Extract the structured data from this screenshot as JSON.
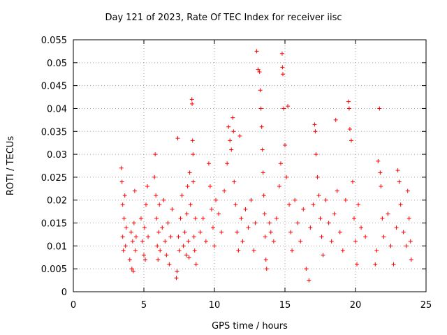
{
  "chart_data": {
    "type": "scatter",
    "title": "Day 121 of 2023, Rate Of TEC Index for receiver iisc",
    "xlabel": "GPS time / hours",
    "ylabel": "ROTI / TECUs",
    "xlim": [
      0,
      25
    ],
    "ylim": [
      0,
      0.055
    ],
    "xticks": [
      "0",
      "5",
      "10",
      "15",
      "20",
      "25"
    ],
    "yticks": [
      "0",
      "0.005",
      "0.01",
      "0.015",
      "0.02",
      "0.025",
      "0.03",
      "0.035",
      "0.04",
      "0.045",
      "0.05",
      "0.055"
    ],
    "grid": true,
    "marker": "+",
    "marker_color": "#ff0000",
    "series": [
      {
        "name": "ROTI",
        "points": [
          [
            3.4,
            0.027
          ],
          [
            3.45,
            0.024
          ],
          [
            3.5,
            0.019
          ],
          [
            3.5,
            0.012
          ],
          [
            3.55,
            0.009
          ],
          [
            3.6,
            0.016
          ],
          [
            3.65,
            0.021
          ],
          [
            3.7,
            0.01
          ],
          [
            3.75,
            0.014
          ],
          [
            4.0,
            0.007
          ],
          [
            4.1,
            0.013
          ],
          [
            4.15,
            0.005
          ],
          [
            4.2,
            0.011
          ],
          [
            4.25,
            0.0045
          ],
          [
            4.3,
            0.015
          ],
          [
            4.35,
            0.022
          ],
          [
            4.4,
            0.009
          ],
          [
            4.45,
            0.012
          ],
          [
            4.8,
            0.016
          ],
          [
            4.9,
            0.011
          ],
          [
            5.0,
            0.008
          ],
          [
            5.05,
            0.014
          ],
          [
            5.1,
            0.007
          ],
          [
            5.15,
            0.019
          ],
          [
            5.25,
            0.023
          ],
          [
            5.3,
            0.012
          ],
          [
            5.75,
            0.025
          ],
          [
            5.8,
            0.03
          ],
          [
            5.85,
            0.021
          ],
          [
            5.9,
            0.016
          ],
          [
            5.95,
            0.01
          ],
          [
            6.0,
            0.007
          ],
          [
            6.05,
            0.013
          ],
          [
            6.1,
            0.019
          ],
          [
            6.15,
            0.009
          ],
          [
            6.3,
            0.014
          ],
          [
            6.4,
            0.02
          ],
          [
            6.5,
            0.011
          ],
          [
            6.6,
            0.008
          ],
          [
            6.7,
            0.015
          ],
          [
            6.8,
            0.006
          ],
          [
            6.9,
            0.012
          ],
          [
            7.0,
            0.018
          ],
          [
            7.3,
            0.003
          ],
          [
            7.35,
            0.0045
          ],
          [
            7.4,
            0.0335
          ],
          [
            7.45,
            0.012
          ],
          [
            7.5,
            0.009
          ],
          [
            7.6,
            0.016
          ],
          [
            7.7,
            0.021
          ],
          [
            7.8,
            0.01
          ],
          [
            7.9,
            0.013
          ],
          [
            8.0,
            0.008
          ],
          [
            8.05,
            0.017
          ],
          [
            8.1,
            0.023
          ],
          [
            8.15,
            0.011
          ],
          [
            8.2,
            0.0075
          ],
          [
            8.25,
            0.026
          ],
          [
            8.3,
            0.019
          ],
          [
            8.4,
            0.042
          ],
          [
            8.42,
            0.041
          ],
          [
            8.45,
            0.033
          ],
          [
            8.48,
            0.03
          ],
          [
            8.5,
            0.024
          ],
          [
            8.55,
            0.012
          ],
          [
            8.6,
            0.009
          ],
          [
            8.65,
            0.016
          ],
          [
            8.7,
            0.006
          ],
          [
            9.0,
            0.013
          ],
          [
            9.2,
            0.016
          ],
          [
            9.4,
            0.011
          ],
          [
            9.6,
            0.028
          ],
          [
            9.7,
            0.023
          ],
          [
            9.8,
            0.018
          ],
          [
            9.9,
            0.014
          ],
          [
            10.0,
            0.01
          ],
          [
            10.1,
            0.02
          ],
          [
            10.3,
            0.017
          ],
          [
            10.5,
            0.013
          ],
          [
            10.7,
            0.022
          ],
          [
            10.9,
            0.028
          ],
          [
            11.0,
            0.036
          ],
          [
            11.1,
            0.033
          ],
          [
            11.2,
            0.031
          ],
          [
            11.3,
            0.038
          ],
          [
            11.35,
            0.035
          ],
          [
            11.4,
            0.024
          ],
          [
            11.5,
            0.019
          ],
          [
            11.6,
            0.013
          ],
          [
            11.7,
            0.009
          ],
          [
            11.8,
            0.034
          ],
          [
            11.9,
            0.016
          ],
          [
            12.0,
            0.011
          ],
          [
            12.2,
            0.018
          ],
          [
            12.4,
            0.014
          ],
          [
            12.6,
            0.02
          ],
          [
            12.8,
            0.009
          ],
          [
            12.9,
            0.015
          ],
          [
            13.0,
            0.0525
          ],
          [
            13.1,
            0.0485
          ],
          [
            13.2,
            0.048
          ],
          [
            13.25,
            0.044
          ],
          [
            13.3,
            0.04
          ],
          [
            13.35,
            0.036
          ],
          [
            13.4,
            0.031
          ],
          [
            13.45,
            0.026
          ],
          [
            13.5,
            0.021
          ],
          [
            13.55,
            0.017
          ],
          [
            13.6,
            0.012
          ],
          [
            13.65,
            0.007
          ],
          [
            13.7,
            0.005
          ],
          [
            13.9,
            0.015
          ],
          [
            14.0,
            0.013
          ],
          [
            14.2,
            0.011
          ],
          [
            14.4,
            0.016
          ],
          [
            14.6,
            0.023
          ],
          [
            14.7,
            0.028
          ],
          [
            14.8,
            0.052
          ],
          [
            14.82,
            0.049
          ],
          [
            14.85,
            0.0475
          ],
          [
            14.9,
            0.04
          ],
          [
            15.0,
            0.032
          ],
          [
            15.1,
            0.025
          ],
          [
            15.2,
            0.0405
          ],
          [
            15.3,
            0.019
          ],
          [
            15.4,
            0.013
          ],
          [
            15.5,
            0.009
          ],
          [
            15.7,
            0.02
          ],
          [
            15.9,
            0.015
          ],
          [
            16.1,
            0.011
          ],
          [
            16.3,
            0.018
          ],
          [
            16.5,
            0.005
          ],
          [
            16.7,
            0.0025
          ],
          [
            16.8,
            0.014
          ],
          [
            17.0,
            0.019
          ],
          [
            17.1,
            0.0365
          ],
          [
            17.15,
            0.035
          ],
          [
            17.2,
            0.03
          ],
          [
            17.3,
            0.025
          ],
          [
            17.4,
            0.021
          ],
          [
            17.5,
            0.016
          ],
          [
            17.6,
            0.012
          ],
          [
            17.7,
            0.008
          ],
          [
            17.9,
            0.02
          ],
          [
            18.1,
            0.015
          ],
          [
            18.3,
            0.011
          ],
          [
            18.5,
            0.017
          ],
          [
            18.6,
            0.0375
          ],
          [
            18.7,
            0.022
          ],
          [
            18.9,
            0.013
          ],
          [
            19.1,
            0.009
          ],
          [
            19.3,
            0.02
          ],
          [
            19.5,
            0.0415
          ],
          [
            19.55,
            0.04
          ],
          [
            19.6,
            0.0355
          ],
          [
            19.7,
            0.033
          ],
          [
            19.8,
            0.024
          ],
          [
            19.9,
            0.016
          ],
          [
            20.0,
            0.011
          ],
          [
            20.1,
            0.006
          ],
          [
            20.2,
            0.019
          ],
          [
            20.4,
            0.014
          ],
          [
            20.7,
            0.012
          ],
          [
            21.4,
            0.006
          ],
          [
            21.5,
            0.009
          ],
          [
            21.6,
            0.0285
          ],
          [
            21.7,
            0.04
          ],
          [
            21.75,
            0.026
          ],
          [
            21.8,
            0.023
          ],
          [
            21.9,
            0.016
          ],
          [
            22.0,
            0.012
          ],
          [
            22.3,
            0.017
          ],
          [
            22.5,
            0.01
          ],
          [
            22.7,
            0.006
          ],
          [
            22.9,
            0.014
          ],
          [
            23.0,
            0.0265
          ],
          [
            23.1,
            0.024
          ],
          [
            23.2,
            0.019
          ],
          [
            23.4,
            0.013
          ],
          [
            23.6,
            0.01
          ],
          [
            23.7,
            0.022
          ],
          [
            23.8,
            0.016
          ],
          [
            23.9,
            0.011
          ],
          [
            23.95,
            0.007
          ]
        ]
      }
    ]
  }
}
